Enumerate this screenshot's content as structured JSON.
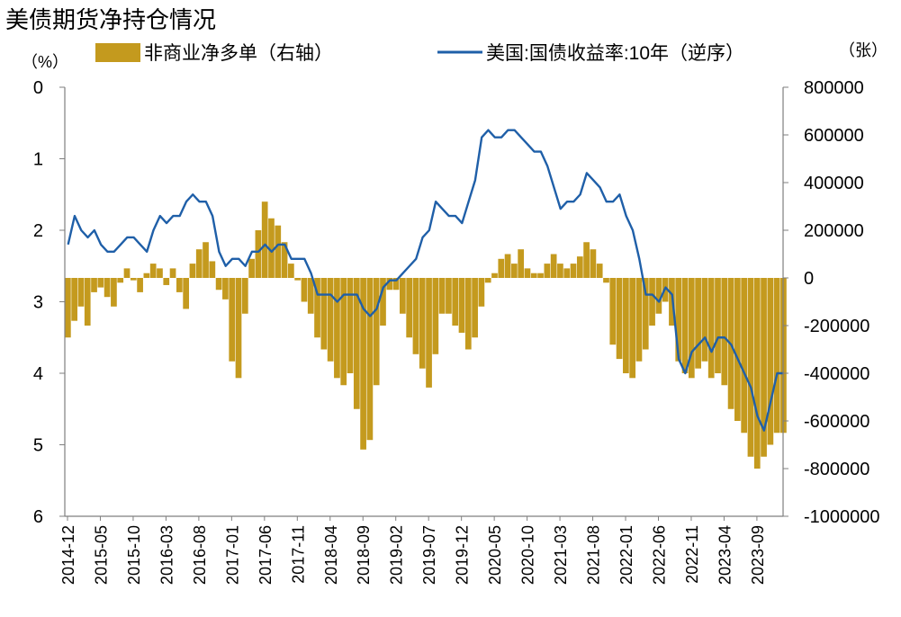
{
  "chart_data": {
    "type": "bar+line",
    "title": "美债期货净持仓情况",
    "left_axis_unit": "（%）",
    "right_axis_unit": "（张）",
    "left_axis": {
      "range": [
        0,
        6
      ],
      "inverted": true,
      "ticks": [
        0,
        1,
        2,
        3,
        4,
        5,
        6
      ],
      "series": "美国:国债收益率:10年（逆序）"
    },
    "right_axis": {
      "range": [
        -1000000,
        800000
      ],
      "ticks": [
        800000,
        600000,
        400000,
        200000,
        0,
        -200000,
        -400000,
        -600000,
        -800000,
        -1000000
      ],
      "series": "非商业净多单（右轴）"
    },
    "x_ticks": [
      "2014-12",
      "2015-05",
      "2015-10",
      "2016-03",
      "2016-08",
      "2017-01",
      "2017-06",
      "2017-11",
      "2018-04",
      "2018-09",
      "2019-02",
      "2019-07",
      "2019-12",
      "2020-05",
      "2020-10",
      "2021-03",
      "2021-08",
      "2022-01",
      "2022-06",
      "2022-11",
      "2023-04",
      "2023-09"
    ],
    "legend": [
      {
        "name": "非商业净多单（右轴）",
        "kind": "bar",
        "color": "#c49a1e"
      },
      {
        "name": "美国:国债收益率:10年（逆序）",
        "kind": "line",
        "color": "#1f5fa8"
      }
    ],
    "series": [
      {
        "name": "美国:国债收益率:10年（逆序）",
        "type": "line",
        "axis": "left",
        "x": [
          "2014-12",
          "2015-01",
          "2015-02",
          "2015-03",
          "2015-04",
          "2015-05",
          "2015-06",
          "2015-07",
          "2015-08",
          "2015-09",
          "2015-10",
          "2015-11",
          "2015-12",
          "2016-01",
          "2016-02",
          "2016-03",
          "2016-04",
          "2016-05",
          "2016-06",
          "2016-07",
          "2016-08",
          "2016-09",
          "2016-10",
          "2016-11",
          "2016-12",
          "2017-01",
          "2017-02",
          "2017-03",
          "2017-04",
          "2017-05",
          "2017-06",
          "2017-07",
          "2017-08",
          "2017-09",
          "2017-10",
          "2017-11",
          "2017-12",
          "2018-01",
          "2018-02",
          "2018-03",
          "2018-04",
          "2018-05",
          "2018-06",
          "2018-07",
          "2018-08",
          "2018-09",
          "2018-10",
          "2018-11",
          "2018-12",
          "2019-01",
          "2019-02",
          "2019-03",
          "2019-04",
          "2019-05",
          "2019-06",
          "2019-07",
          "2019-08",
          "2019-09",
          "2019-10",
          "2019-11",
          "2019-12",
          "2020-01",
          "2020-02",
          "2020-03",
          "2020-04",
          "2020-05",
          "2020-06",
          "2020-07",
          "2020-08",
          "2020-09",
          "2020-10",
          "2020-11",
          "2020-12",
          "2021-01",
          "2021-02",
          "2021-03",
          "2021-04",
          "2021-05",
          "2021-06",
          "2021-07",
          "2021-08",
          "2021-09",
          "2021-10",
          "2021-11",
          "2021-12",
          "2022-01",
          "2022-02",
          "2022-03",
          "2022-04",
          "2022-05",
          "2022-06",
          "2022-07",
          "2022-08",
          "2022-09",
          "2022-10",
          "2022-11",
          "2022-12",
          "2023-01",
          "2023-02",
          "2023-03",
          "2023-04",
          "2023-05",
          "2023-06",
          "2023-07",
          "2023-08",
          "2023-09",
          "2023-10",
          "2023-11",
          "2023-12",
          "2024-01"
        ],
        "values": [
          2.2,
          1.8,
          2.0,
          2.1,
          2.0,
          2.2,
          2.3,
          2.3,
          2.2,
          2.1,
          2.1,
          2.2,
          2.3,
          2.0,
          1.8,
          1.9,
          1.8,
          1.8,
          1.6,
          1.5,
          1.6,
          1.6,
          1.8,
          2.3,
          2.5,
          2.4,
          2.4,
          2.5,
          2.3,
          2.3,
          2.2,
          2.3,
          2.2,
          2.2,
          2.4,
          2.4,
          2.4,
          2.6,
          2.9,
          2.9,
          2.9,
          3.0,
          2.9,
          2.9,
          2.9,
          3.1,
          3.2,
          3.1,
          2.8,
          2.7,
          2.7,
          2.6,
          2.5,
          2.4,
          2.1,
          2.0,
          1.6,
          1.7,
          1.8,
          1.8,
          1.9,
          1.6,
          1.3,
          0.7,
          0.6,
          0.7,
          0.7,
          0.6,
          0.6,
          0.7,
          0.8,
          0.9,
          0.9,
          1.1,
          1.4,
          1.7,
          1.6,
          1.6,
          1.5,
          1.2,
          1.3,
          1.4,
          1.6,
          1.6,
          1.5,
          1.8,
          2.0,
          2.4,
          2.9,
          2.9,
          3.0,
          2.8,
          2.9,
          3.8,
          4.0,
          3.7,
          3.6,
          3.5,
          3.7,
          3.5,
          3.5,
          3.6,
          3.8,
          4.0,
          4.2,
          4.6,
          4.8,
          4.4,
          4.0,
          4.0
        ]
      },
      {
        "name": "非商业净多单（右轴）",
        "type": "bar",
        "axis": "right",
        "x": [
          "2014-12",
          "2015-01",
          "2015-02",
          "2015-03",
          "2015-04",
          "2015-05",
          "2015-06",
          "2015-07",
          "2015-08",
          "2015-09",
          "2015-10",
          "2015-11",
          "2015-12",
          "2016-01",
          "2016-02",
          "2016-03",
          "2016-04",
          "2016-05",
          "2016-06",
          "2016-07",
          "2016-08",
          "2016-09",
          "2016-10",
          "2016-11",
          "2016-12",
          "2017-01",
          "2017-02",
          "2017-03",
          "2017-04",
          "2017-05",
          "2017-06",
          "2017-07",
          "2017-08",
          "2017-09",
          "2017-10",
          "2017-11",
          "2017-12",
          "2018-01",
          "2018-02",
          "2018-03",
          "2018-04",
          "2018-05",
          "2018-06",
          "2018-07",
          "2018-08",
          "2018-09",
          "2018-10",
          "2018-11",
          "2018-12",
          "2019-01",
          "2019-02",
          "2019-03",
          "2019-04",
          "2019-05",
          "2019-06",
          "2019-07",
          "2019-08",
          "2019-09",
          "2019-10",
          "2019-11",
          "2019-12",
          "2020-01",
          "2020-02",
          "2020-03",
          "2020-04",
          "2020-05",
          "2020-06",
          "2020-07",
          "2020-08",
          "2020-09",
          "2020-10",
          "2020-11",
          "2020-12",
          "2021-01",
          "2021-02",
          "2021-03",
          "2021-04",
          "2021-05",
          "2021-06",
          "2021-07",
          "2021-08",
          "2021-09",
          "2021-10",
          "2021-11",
          "2021-12",
          "2022-01",
          "2022-02",
          "2022-03",
          "2022-04",
          "2022-05",
          "2022-06",
          "2022-07",
          "2022-08",
          "2022-09",
          "2022-10",
          "2022-11",
          "2022-12",
          "2023-01",
          "2023-02",
          "2023-03",
          "2023-04",
          "2023-05",
          "2023-06",
          "2023-07",
          "2023-08",
          "2023-09",
          "2023-10",
          "2023-11",
          "2023-12",
          "2024-01"
        ],
        "values": [
          -250000,
          -180000,
          -120000,
          -200000,
          -60000,
          -40000,
          -80000,
          -120000,
          -20000,
          40000,
          -10000,
          -60000,
          20000,
          60000,
          40000,
          -30000,
          40000,
          -60000,
          -130000,
          60000,
          120000,
          150000,
          70000,
          -50000,
          -90000,
          -350000,
          -420000,
          -150000,
          80000,
          200000,
          320000,
          250000,
          220000,
          150000,
          60000,
          -10000,
          -100000,
          -150000,
          -250000,
          -300000,
          -350000,
          -420000,
          -450000,
          -400000,
          -550000,
          -720000,
          -680000,
          -450000,
          -200000,
          -50000,
          -50000,
          -150000,
          -250000,
          -320000,
          -380000,
          -460000,
          -320000,
          -150000,
          -150000,
          -200000,
          -230000,
          -300000,
          -250000,
          -120000,
          -20000,
          20000,
          80000,
          100000,
          60000,
          120000,
          40000,
          20000,
          20000,
          60000,
          100000,
          60000,
          40000,
          60000,
          90000,
          150000,
          120000,
          60000,
          -20000,
          -280000,
          -340000,
          -400000,
          -420000,
          -350000,
          -300000,
          -200000,
          -150000,
          -100000,
          -200000,
          -350000,
          -400000,
          -420000,
          -380000,
          -350000,
          -420000,
          -400000,
          -450000,
          -550000,
          -600000,
          -650000,
          -750000,
          -800000,
          -750000,
          -700000,
          -650000,
          -650000
        ]
      }
    ]
  }
}
